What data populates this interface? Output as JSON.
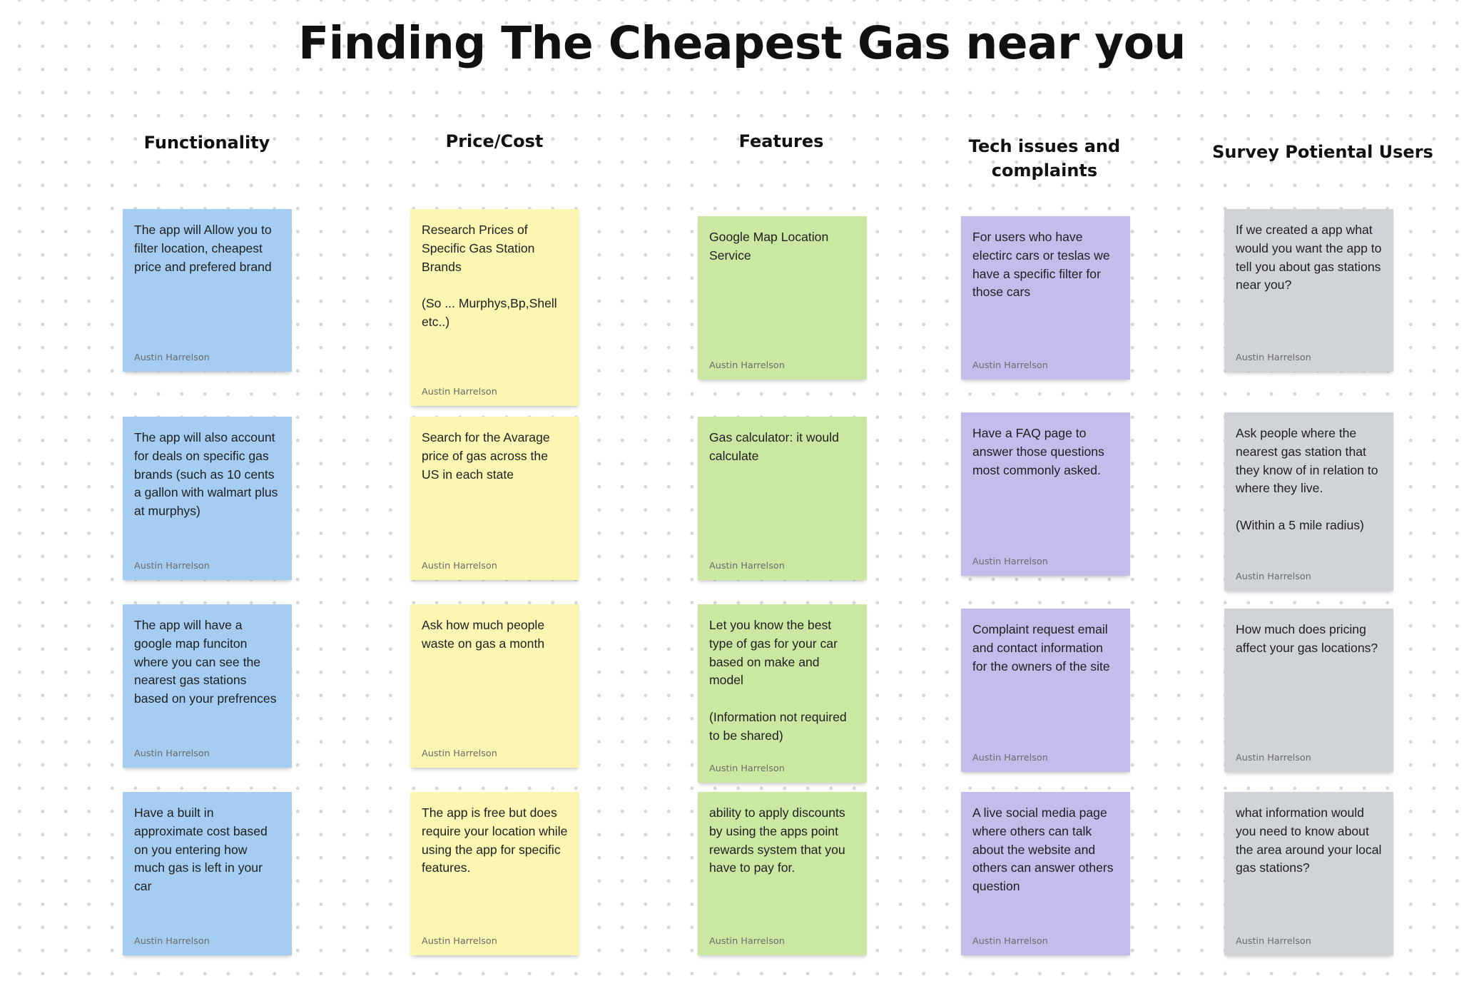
{
  "board": {
    "title": "Finding The Cheapest Gas near you"
  },
  "colors": {
    "blue": "#a4cdf1",
    "yellow": "#fbf6b2",
    "green": "#cbe8a3",
    "purple": "#c3bdec",
    "gray": "#d0d3d8"
  },
  "columns": [
    {
      "header": "Functionality",
      "notes": [
        {
          "text": "The app will Allow you to filter location, cheapest price and prefered brand",
          "author": "Austin Harrelson"
        },
        {
          "text": "The app will also account for deals on specific gas brands (such as 10 cents a gallon with walmart plus at murphys)",
          "author": "Austin Harrelson"
        },
        {
          "text": "The app will have a google map funciton where you can see the nearest gas stations based on your prefrences",
          "author": "Austin Harrelson"
        },
        {
          "text": "Have a built in approximate cost based on you entering how much gas is left in your car",
          "author": "Austin Harrelson"
        }
      ]
    },
    {
      "header": "Price/Cost",
      "notes": [
        {
          "text": "Research Prices of Specific Gas Station Brands\n\n(So ... Murphys,Bp,Shell etc..)",
          "author": "Austin Harrelson"
        },
        {
          "text": "Search for the Avarage price of gas across the US in each state",
          "author": "Austin Harrelson"
        },
        {
          "text": "Ask how much people waste on gas a month",
          "author": "Austin Harrelson"
        },
        {
          "text": "The app is free but does require your location while using the app for specific features.",
          "author": "Austin Harrelson"
        }
      ]
    },
    {
      "header": "Features",
      "notes": [
        {
          "text": "Google Map Location Service",
          "author": "Austin Harrelson"
        },
        {
          "text": "Gas calculator: it would calculate",
          "author": "Austin Harrelson"
        },
        {
          "text": "Let you know the best type of gas for your car based on make and model\n\n(Information not required to be shared)",
          "author": "Austin Harrelson"
        },
        {
          "text": "ability to apply discounts by using the apps point rewards system that you have to pay for.",
          "author": "Austin Harrelson"
        }
      ]
    },
    {
      "header": "Tech issues and complaints",
      "notes": [
        {
          "text": "For users who have electirc cars or teslas we have a specific filter for those cars",
          "author": "Austin Harrelson"
        },
        {
          "text": "Have a FAQ page to answer those questions most commonly asked.",
          "author": "Austin Harrelson"
        },
        {
          "text": "Complaint request email and contact information for the owners of the site",
          "author": "Austin Harrelson"
        },
        {
          "text": "A live social media page where others can talk about the website and others can answer others question",
          "author": "Austin Harrelson"
        }
      ]
    },
    {
      "header": "Survey Potiental Users",
      "notes": [
        {
          "text": "If we created a app what would you want the app to tell you about gas stations near you?",
          "author": "Austin Harrelson"
        },
        {
          "text": "Ask people where the nearest gas station that they know of in relation to where they live.\n\n(Within a 5 mile radius)",
          "author": "Austin Harrelson"
        },
        {
          "text": "How much does pricing affect your gas locations?",
          "author": "Austin Harrelson"
        },
        {
          "text": "what information would you need to know about the area around your local gas stations?",
          "author": "Austin Harrelson"
        }
      ]
    }
  ]
}
